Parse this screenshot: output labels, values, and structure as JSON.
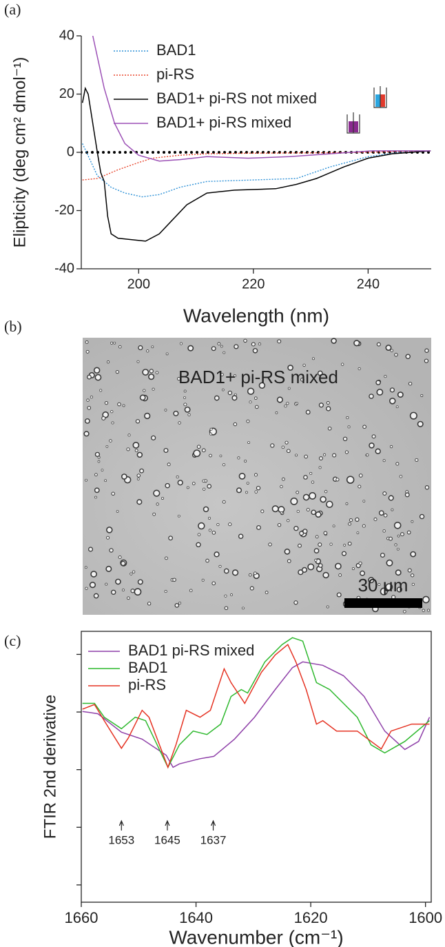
{
  "chart_data": [
    {
      "type": "line",
      "panel_label": "(a)",
      "xlabel": "Wavelength (nm)",
      "ylabel": "Elipticity (deg cm² dmol⁻¹)",
      "xlim": [
        190,
        251
      ],
      "ylim": [
        -40,
        40
      ],
      "xticks": [
        200,
        220,
        240
      ],
      "yticks": [
        -40,
        -20,
        0,
        20,
        40
      ],
      "hline": 0,
      "legend": "upper left",
      "box": false,
      "ytick_labels": true,
      "series": [
        {
          "name": "BAD1",
          "color": "#2a8fd6",
          "dashed": true,
          "x": [
            190.2,
            192.8,
            195.2,
            197.6,
            200,
            200.6,
            203.6,
            207.2,
            211.9,
            220,
            227.5,
            233.4,
            240,
            245.4,
            250.9
          ],
          "values": [
            3,
            -8,
            -12,
            -14,
            -15,
            -15.3,
            -14.5,
            -12,
            -10,
            -9.5,
            -9,
            -5,
            -1.5,
            0,
            0.5
          ]
        },
        {
          "name": "pi-RS",
          "color": "#e8452c",
          "dashed": true,
          "x": [
            190.2,
            192.8,
            196.4,
            200,
            202.4,
            207.2,
            211.9,
            219.1,
            229.9,
            239.4,
            250.9
          ],
          "values": [
            -9.5,
            -9,
            -6,
            -3.5,
            -2,
            -1,
            -0.5,
            -0.3,
            -0.2,
            0,
            0.5
          ]
        },
        {
          "name": "BAD1+ pi-RS not mixed",
          "color": "#000000",
          "dashed": false,
          "x": [
            190.2,
            190.7,
            191.2,
            192.8,
            193.4,
            194,
            194.6,
            195.2,
            196.4,
            198.8,
            201.2,
            203.6,
            206,
            208.4,
            211.9,
            216.7,
            223.9,
            227.5,
            231,
            235.8,
            240,
            244.2,
            250.9
          ],
          "values": [
            17,
            22,
            20,
            0,
            -7,
            -10,
            -22,
            -28,
            -29.5,
            -30,
            -30.5,
            -28,
            -23,
            -18,
            -14,
            -13,
            -12.5,
            -11,
            -9,
            -5,
            -2,
            -0.5,
            0.5
          ]
        },
        {
          "name": "BAD1+ pi-RS mixed",
          "color": "#9b4fb5",
          "dashed": false,
          "x": [
            192,
            194,
            195.8,
            197.6,
            200,
            203.6,
            207.2,
            211.9,
            219.1,
            226.3,
            233.4,
            240.6,
            250.9
          ],
          "values": [
            40,
            22,
            10,
            3,
            -1,
            -3,
            -2.5,
            -1.5,
            -2,
            -1.5,
            -0.5,
            0.5,
            0.5
          ]
        }
      ]
    },
    {
      "type": "line",
      "panel_label": "(c)",
      "xlabel": "Wavenumber (cm⁻¹)",
      "ylabel": "FTIR 2nd derivative",
      "xlim": [
        1660,
        1599
      ],
      "ylim": [
        -2.3,
        2.4
      ],
      "xticks": [
        1660,
        1640,
        1620,
        1600
      ],
      "yticks": [
        -2,
        -1,
        0,
        1,
        2
      ],
      "legend": "upper left",
      "box": true,
      "ytick_labels": false,
      "annotations": [
        1653,
        1645,
        1637
      ],
      "series": [
        {
          "name": "BAD1 pi-RS mixed",
          "color": "#8e3fa8",
          "dashed": false,
          "x": [
            1659.8,
            1657.1,
            1653.0,
            1649.4,
            1645.2,
            1644.0,
            1642.9,
            1639.3,
            1636.9,
            1633.3,
            1629.8,
            1626.2,
            1623.2,
            1621.4,
            1617.9,
            1614.3,
            1610.7,
            1607.1,
            1603.6,
            1601.2,
            1599.3
          ],
          "values": [
            1.01,
            0.97,
            0.65,
            0.53,
            0.25,
            0.04,
            0.1,
            0.19,
            0.23,
            0.53,
            0.91,
            1.39,
            1.77,
            1.87,
            1.81,
            1.63,
            1.27,
            0.67,
            0.35,
            0.49,
            0.91
          ]
        },
        {
          "name": "BAD1",
          "color": "#2db82d",
          "dashed": false,
          "x": [
            1659.8,
            1657.7,
            1656.0,
            1653.0,
            1650.6,
            1648.8,
            1644.9,
            1642.9,
            1640.5,
            1638.1,
            1635.7,
            1633.9,
            1632.1,
            1631.0,
            1628.0,
            1625.0,
            1623.2,
            1621.4,
            1619.0,
            1616.7,
            1614.3,
            1611.9,
            1609.5,
            1607.1,
            1603.6,
            1599.3
          ],
          "values": [
            1.15,
            1.15,
            0.91,
            0.71,
            0.91,
            0.85,
            0.04,
            0.43,
            0.67,
            0.61,
            0.79,
            1.27,
            1.39,
            1.33,
            1.87,
            2.17,
            2.29,
            2.23,
            1.51,
            1.39,
            1.15,
            0.91,
            0.43,
            0.29,
            0.49,
            0.85
          ]
        },
        {
          "name": "pi-RS",
          "color": "#e53222",
          "dashed": false,
          "x": [
            1659.8,
            1657.7,
            1656.0,
            1653.0,
            1651.8,
            1649.4,
            1648.2,
            1644.9,
            1643.5,
            1641.7,
            1639.3,
            1637.5,
            1635.1,
            1633.9,
            1631.5,
            1628.6,
            1626.2,
            1624.0,
            1622.6,
            1620.8,
            1619.0,
            1617.9,
            1615.5,
            1611.9,
            1607.7,
            1606.0,
            1602.4,
            1599.3
          ],
          "values": [
            1.05,
            1.13,
            0.85,
            0.37,
            0.55,
            1.03,
            0.91,
            0.04,
            0.43,
            1.03,
            0.91,
            1.03,
            1.75,
            1.51,
            1.15,
            1.69,
            1.99,
            2.17,
            1.87,
            1.39,
            0.79,
            0.85,
            0.67,
            0.67,
            0.36,
            0.67,
            0.79,
            0.79
          ]
        }
      ]
    }
  ],
  "image": {
    "panel_label": "(b)",
    "caption": "BAD1+ pi-RS mixed",
    "scale_bar_label": "30 μm"
  }
}
